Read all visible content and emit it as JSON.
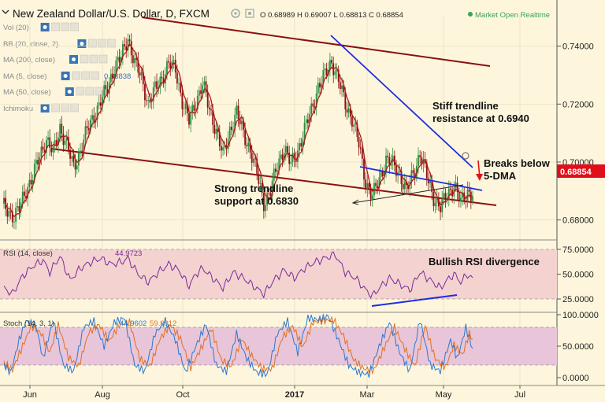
{
  "header": {
    "title": "New Zealand Dollar/U.S. Dollar, D, FXCM",
    "ohlc": "O 0.68989 H 0.69007 L 0.68813 C 0.68854",
    "status": "Market Open Realtime",
    "status_color": "#3aa35a"
  },
  "indicator_labels": [
    "Vol (20)",
    "BB (20, close, 2)",
    "MA (200, close)",
    "MA (5, close)",
    "MA (50, close)",
    "Ichimoku"
  ],
  "ma5_value": "0.68838",
  "price_axis": {
    "ticks": [
      "0.74000",
      "0.72000",
      "0.70000",
      "0.68000"
    ],
    "current": "0.68854",
    "current_color": "#e0101a"
  },
  "rsi_panel": {
    "label": "RSI (14, close)",
    "value": "44.9723",
    "ticks": [
      "75.0000",
      "50.0000",
      "25.0000"
    ]
  },
  "stoch_panel": {
    "label": "Stoch (14, 3, 1)",
    "k_value": "44.9602",
    "d_value": "59.9912",
    "ticks": [
      "100.0000",
      "50.0000",
      "0.0000"
    ]
  },
  "time_axis": [
    "Jun",
    "Aug",
    "Oct",
    "2017",
    "Mar",
    "May",
    "Jul"
  ],
  "annotations": {
    "resistance": [
      "Stiff trendline",
      "resistance at 0.6940"
    ],
    "support": [
      "Strong trendline",
      "support at 0.6830"
    ],
    "breaks": [
      "Breaks below",
      "5-DMA"
    ],
    "rsi": "Bullish RSI divergence"
  },
  "colors": {
    "bull": "#2e8b3e",
    "bear": "#8b1010",
    "ma": "#b01818",
    "trend": "#8b1010",
    "wedge": "#1c2ee0",
    "rsi_band": "#f3d2cf",
    "stoch_band": "#e8c5d8",
    "line": "#7a2a9a"
  },
  "chart_data": {
    "type": "candlestick",
    "price_range": [
      0.675,
      0.7505
    ],
    "points": [
      {
        "t": 1,
        "p": 0.6845
      },
      {
        "t": 4,
        "p": 0.683
      },
      {
        "t": 7,
        "p": 0.681
      },
      {
        "t": 10,
        "p": 0.684
      },
      {
        "t": 14,
        "p": 0.6905
      },
      {
        "t": 18,
        "p": 0.695
      },
      {
        "t": 22,
        "p": 0.702
      },
      {
        "t": 26,
        "p": 0.708
      },
      {
        "t": 30,
        "p": 0.703
      },
      {
        "t": 34,
        "p": 0.712
      },
      {
        "t": 38,
        "p": 0.706
      },
      {
        "t": 42,
        "p": 0.698
      },
      {
        "t": 46,
        "p": 0.704
      },
      {
        "t": 50,
        "p": 0.711
      },
      {
        "t": 54,
        "p": 0.716
      },
      {
        "t": 58,
        "p": 0.721
      },
      {
        "t": 62,
        "p": 0.7255
      },
      {
        "t": 66,
        "p": 0.733
      },
      {
        "t": 70,
        "p": 0.736
      },
      {
        "t": 74,
        "p": 0.743
      },
      {
        "t": 78,
        "p": 0.734
      },
      {
        "t": 82,
        "p": 0.729
      },
      {
        "t": 86,
        "p": 0.72
      },
      {
        "t": 90,
        "p": 0.725
      },
      {
        "t": 94,
        "p": 0.729
      },
      {
        "t": 98,
        "p": 0.734
      },
      {
        "t": 102,
        "p": 0.732
      },
      {
        "t": 106,
        "p": 0.721
      },
      {
        "t": 110,
        "p": 0.714
      },
      {
        "t": 114,
        "p": 0.721
      },
      {
        "t": 118,
        "p": 0.727
      },
      {
        "t": 122,
        "p": 0.718
      },
      {
        "t": 126,
        "p": 0.711
      },
      {
        "t": 130,
        "p": 0.702
      },
      {
        "t": 134,
        "p": 0.711
      },
      {
        "t": 138,
        "p": 0.717
      },
      {
        "t": 142,
        "p": 0.71
      },
      {
        "t": 146,
        "p": 0.704
      },
      {
        "t": 150,
        "p": 0.696
      },
      {
        "t": 154,
        "p": 0.686
      },
      {
        "t": 158,
        "p": 0.69
      },
      {
        "t": 162,
        "p": 0.699
      },
      {
        "t": 166,
        "p": 0.705
      },
      {
        "t": 170,
        "p": 0.699
      },
      {
        "t": 174,
        "p": 0.704
      },
      {
        "t": 178,
        "p": 0.711
      },
      {
        "t": 182,
        "p": 0.718
      },
      {
        "t": 186,
        "p": 0.726
      },
      {
        "t": 190,
        "p": 0.73
      },
      {
        "t": 194,
        "p": 0.735
      },
      {
        "t": 198,
        "p": 0.728
      },
      {
        "t": 202,
        "p": 0.72
      },
      {
        "t": 206,
        "p": 0.715
      },
      {
        "t": 210,
        "p": 0.706
      },
      {
        "t": 214,
        "p": 0.693
      },
      {
        "t": 218,
        "p": 0.688
      },
      {
        "t": 222,
        "p": 0.694
      },
      {
        "t": 226,
        "p": 0.701
      },
      {
        "t": 230,
        "p": 0.699
      },
      {
        "t": 234,
        "p": 0.696
      },
      {
        "t": 238,
        "p": 0.69
      },
      {
        "t": 242,
        "p": 0.696
      },
      {
        "t": 246,
        "p": 0.703
      },
      {
        "t": 250,
        "p": 0.695
      },
      {
        "t": 254,
        "p": 0.688
      },
      {
        "t": 258,
        "p": 0.684
      },
      {
        "t": 262,
        "p": 0.689
      },
      {
        "t": 266,
        "p": 0.692
      },
      {
        "t": 270,
        "p": 0.686
      },
      {
        "t": 274,
        "p": 0.69
      },
      {
        "t": 277,
        "p": 0.6885
      }
    ],
    "rsi": [
      {
        "t": 1,
        "v": 36
      },
      {
        "t": 6,
        "v": 30
      },
      {
        "t": 12,
        "v": 48
      },
      {
        "t": 18,
        "v": 58
      },
      {
        "t": 24,
        "v": 64
      },
      {
        "t": 28,
        "v": 52
      },
      {
        "t": 34,
        "v": 68
      },
      {
        "t": 40,
        "v": 44
      },
      {
        "t": 46,
        "v": 56
      },
      {
        "t": 52,
        "v": 62
      },
      {
        "t": 58,
        "v": 66
      },
      {
        "t": 64,
        "v": 60
      },
      {
        "t": 70,
        "v": 62
      },
      {
        "t": 74,
        "v": 66
      },
      {
        "t": 80,
        "v": 50
      },
      {
        "t": 86,
        "v": 42
      },
      {
        "t": 92,
        "v": 52
      },
      {
        "t": 98,
        "v": 60
      },
      {
        "t": 104,
        "v": 54
      },
      {
        "t": 110,
        "v": 38
      },
      {
        "t": 114,
        "v": 50
      },
      {
        "t": 118,
        "v": 56
      },
      {
        "t": 124,
        "v": 46
      },
      {
        "t": 130,
        "v": 36
      },
      {
        "t": 136,
        "v": 52
      },
      {
        "t": 142,
        "v": 46
      },
      {
        "t": 148,
        "v": 38
      },
      {
        "t": 154,
        "v": 30
      },
      {
        "t": 160,
        "v": 44
      },
      {
        "t": 166,
        "v": 54
      },
      {
        "t": 172,
        "v": 46
      },
      {
        "t": 178,
        "v": 56
      },
      {
        "t": 184,
        "v": 62
      },
      {
        "t": 190,
        "v": 66
      },
      {
        "t": 196,
        "v": 70
      },
      {
        "t": 202,
        "v": 52
      },
      {
        "t": 208,
        "v": 46
      },
      {
        "t": 214,
        "v": 34
      },
      {
        "t": 218,
        "v": 28
      },
      {
        "t": 222,
        "v": 36
      },
      {
        "t": 228,
        "v": 46
      },
      {
        "t": 234,
        "v": 40
      },
      {
        "t": 240,
        "v": 34
      },
      {
        "t": 246,
        "v": 52
      },
      {
        "t": 252,
        "v": 44
      },
      {
        "t": 258,
        "v": 36
      },
      {
        "t": 262,
        "v": 44
      },
      {
        "t": 266,
        "v": 50
      },
      {
        "t": 270,
        "v": 42
      },
      {
        "t": 274,
        "v": 50
      },
      {
        "t": 277,
        "v": 45
      }
    ],
    "stoch_k": [
      {
        "t": 1,
        "v": 20
      },
      {
        "t": 5,
        "v": 8
      },
      {
        "t": 10,
        "v": 60
      },
      {
        "t": 14,
        "v": 90
      },
      {
        "t": 20,
        "v": 82
      },
      {
        "t": 24,
        "v": 30
      },
      {
        "t": 30,
        "v": 92
      },
      {
        "t": 36,
        "v": 20
      },
      {
        "t": 42,
        "v": 10
      },
      {
        "t": 48,
        "v": 80
      },
      {
        "t": 54,
        "v": 90
      },
      {
        "t": 60,
        "v": 50
      },
      {
        "t": 66,
        "v": 88
      },
      {
        "t": 72,
        "v": 95
      },
      {
        "t": 78,
        "v": 20
      },
      {
        "t": 84,
        "v": 10
      },
      {
        "t": 90,
        "v": 70
      },
      {
        "t": 96,
        "v": 90
      },
      {
        "t": 102,
        "v": 60
      },
      {
        "t": 108,
        "v": 8
      },
      {
        "t": 114,
        "v": 50
      },
      {
        "t": 120,
        "v": 85
      },
      {
        "t": 126,
        "v": 20
      },
      {
        "t": 132,
        "v": 10
      },
      {
        "t": 138,
        "v": 70
      },
      {
        "t": 144,
        "v": 30
      },
      {
        "t": 150,
        "v": 8
      },
      {
        "t": 156,
        "v": 5
      },
      {
        "t": 162,
        "v": 70
      },
      {
        "t": 168,
        "v": 90
      },
      {
        "t": 174,
        "v": 40
      },
      {
        "t": 180,
        "v": 95
      },
      {
        "t": 186,
        "v": 92
      },
      {
        "t": 192,
        "v": 98
      },
      {
        "t": 198,
        "v": 60
      },
      {
        "t": 204,
        "v": 20
      },
      {
        "t": 210,
        "v": 8
      },
      {
        "t": 216,
        "v": 5
      },
      {
        "t": 222,
        "v": 50
      },
      {
        "t": 228,
        "v": 88
      },
      {
        "t": 234,
        "v": 40
      },
      {
        "t": 240,
        "v": 10
      },
      {
        "t": 246,
        "v": 92
      },
      {
        "t": 252,
        "v": 20
      },
      {
        "t": 258,
        "v": 10
      },
      {
        "t": 264,
        "v": 60
      },
      {
        "t": 268,
        "v": 30
      },
      {
        "t": 273,
        "v": 80
      },
      {
        "t": 277,
        "v": 45
      }
    ],
    "stoch_d": [
      {
        "t": 1,
        "v": 24
      },
      {
        "t": 6,
        "v": 12
      },
      {
        "t": 12,
        "v": 50
      },
      {
        "t": 17,
        "v": 82
      },
      {
        "t": 23,
        "v": 70
      },
      {
        "t": 28,
        "v": 40
      },
      {
        "t": 33,
        "v": 84
      },
      {
        "t": 39,
        "v": 32
      },
      {
        "t": 45,
        "v": 18
      },
      {
        "t": 51,
        "v": 72
      },
      {
        "t": 57,
        "v": 84
      },
      {
        "t": 63,
        "v": 58
      },
      {
        "t": 69,
        "v": 84
      },
      {
        "t": 75,
        "v": 88
      },
      {
        "t": 81,
        "v": 30
      },
      {
        "t": 87,
        "v": 18
      },
      {
        "t": 93,
        "v": 62
      },
      {
        "t": 99,
        "v": 84
      },
      {
        "t": 105,
        "v": 62
      },
      {
        "t": 111,
        "v": 16
      },
      {
        "t": 117,
        "v": 46
      },
      {
        "t": 123,
        "v": 78
      },
      {
        "t": 129,
        "v": 28
      },
      {
        "t": 135,
        "v": 18
      },
      {
        "t": 141,
        "v": 62
      },
      {
        "t": 147,
        "v": 34
      },
      {
        "t": 153,
        "v": 14
      },
      {
        "t": 159,
        "v": 14
      },
      {
        "t": 165,
        "v": 64
      },
      {
        "t": 171,
        "v": 82
      },
      {
        "t": 177,
        "v": 48
      },
      {
        "t": 183,
        "v": 88
      },
      {
        "t": 189,
        "v": 90
      },
      {
        "t": 195,
        "v": 92
      },
      {
        "t": 201,
        "v": 66
      },
      {
        "t": 207,
        "v": 28
      },
      {
        "t": 213,
        "v": 14
      },
      {
        "t": 219,
        "v": 12
      },
      {
        "t": 225,
        "v": 48
      },
      {
        "t": 231,
        "v": 80
      },
      {
        "t": 237,
        "v": 46
      },
      {
        "t": 243,
        "v": 18
      },
      {
        "t": 249,
        "v": 82
      },
      {
        "t": 255,
        "v": 30
      },
      {
        "t": 261,
        "v": 16
      },
      {
        "t": 266,
        "v": 52
      },
      {
        "t": 271,
        "v": 36
      },
      {
        "t": 275,
        "v": 70
      },
      {
        "t": 277,
        "v": 60
      }
    ]
  }
}
